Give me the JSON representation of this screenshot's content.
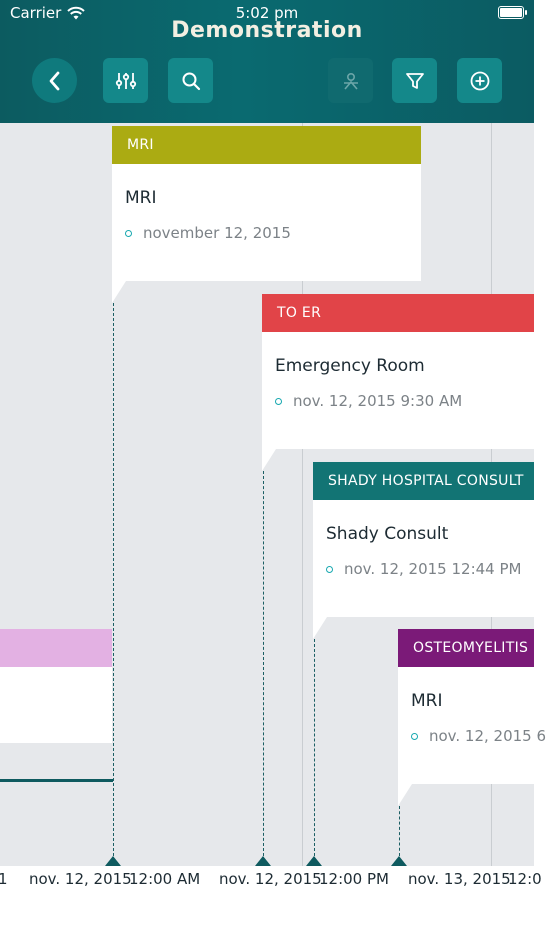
{
  "status_bar": {
    "carrier": "Carrier",
    "time": "5:02 pm"
  },
  "header": {
    "title": "Demonstration"
  },
  "toolbar": {
    "back_icon": "chevron-left-icon",
    "settings_icon": "sliders-icon",
    "search_icon": "search-icon",
    "person_icon": "person-icon",
    "filter_icon": "filter-icon",
    "add_icon": "add-circle-icon"
  },
  "events": [
    {
      "tag": "MRI",
      "title": "MRI",
      "date": "november 12, 2015",
      "color": "#abab12"
    },
    {
      "tag": "TO ER",
      "title": "Emergency Room",
      "date": "nov. 12, 2015 9:30 AM",
      "color": "#e14448"
    },
    {
      "tag": "SHADY HOSPITAL CONSULT",
      "title": "Shady Consult",
      "date": "nov. 12, 2015 12:44 PM",
      "color": "#127474"
    },
    {
      "tag": "OSTEOMYELITIS",
      "title": "MRI",
      "date": "nov. 12, 2015 6",
      "color": "#7b1a78"
    },
    {
      "tag": "",
      "title": "",
      "date": "",
      "color": "#e3b1e3"
    }
  ],
  "axis": {
    "labels": [
      "1",
      "nov. 12, 2015",
      "12:00 AM",
      "nov. 12, 2015",
      "12:00 PM",
      "nov. 13, 2015",
      "12:0"
    ]
  }
}
